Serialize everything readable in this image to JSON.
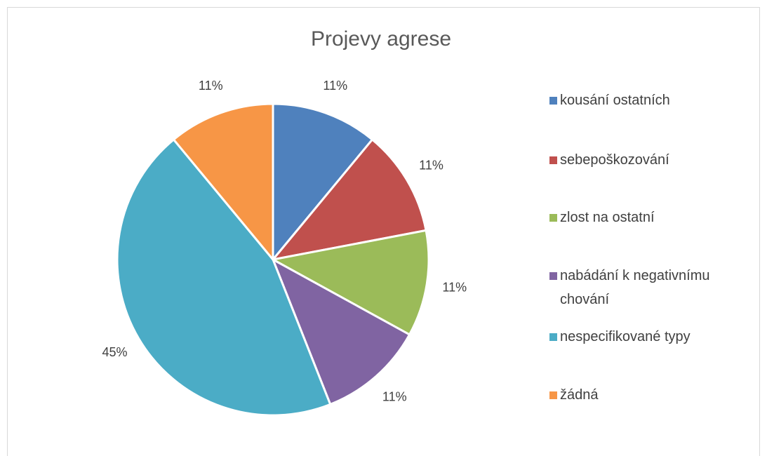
{
  "chart_data": {
    "type": "pie",
    "title": "Projevy agrese",
    "categories": [
      "kousání ostatních",
      "sebepoškozování",
      "zlost na ostatní",
      "nabádání k negativnímu chování",
      "nespecifikované typy",
      "žádná"
    ],
    "values": [
      11,
      11,
      11,
      11,
      45,
      11
    ],
    "value_labels": [
      "11%",
      "11%",
      "11%",
      "11%",
      "45%",
      "11%"
    ],
    "colors": [
      "#4f81bd",
      "#c0504d",
      "#9bbb59",
      "#8064a2",
      "#4bacc6",
      "#f79646"
    ],
    "legend": "right"
  }
}
